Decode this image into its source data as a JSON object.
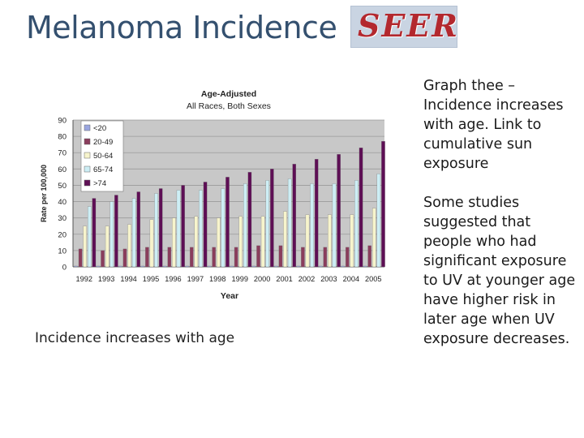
{
  "slide": {
    "title": "Melanoma Incidence",
    "logo_text": "SEER",
    "caption": "Incidence increases with age",
    "notes": [
      "Graph thee – Incidence increases with age. Link to cumulative sun exposure",
      "Some studies suggested that people who had significant exposure to UV at younger age have higher risk in later age when UV exposure decreases."
    ]
  },
  "chart_data": {
    "type": "bar",
    "title": "Age-Adjusted",
    "subtitle": "All Races, Both Sexes",
    "xlabel": "Year",
    "ylabel": "Rate per 100,000",
    "ylim": [
      0,
      90
    ],
    "yticks": [
      0,
      10,
      20,
      30,
      40,
      50,
      60,
      70,
      80,
      90
    ],
    "grid": true,
    "legend_position": "top-left",
    "categories": [
      "1992",
      "1993",
      "1994",
      "1995",
      "1996",
      "1997",
      "1998",
      "1999",
      "2000",
      "2001",
      "2002",
      "2003",
      "2004",
      "2005"
    ],
    "series": [
      {
        "name": "<20",
        "color": "#9aa6e0",
        "values": [
          0.5,
          0.5,
          0.5,
          0.5,
          0.5,
          0.5,
          0.5,
          0.5,
          0.5,
          0.5,
          0.5,
          0.5,
          0.5,
          0.5
        ]
      },
      {
        "name": "20-49",
        "color": "#8a3d5c",
        "values": [
          11,
          10,
          11,
          12,
          12,
          12,
          12,
          12,
          13,
          13,
          12,
          12,
          12,
          13
        ]
      },
      {
        "name": "50-64",
        "color": "#f7f4cc",
        "values": [
          25,
          25,
          26,
          29,
          30,
          31,
          30,
          31,
          31,
          34,
          32,
          32,
          32,
          36
        ]
      },
      {
        "name": "65-74",
        "color": "#cdeef5",
        "values": [
          37,
          40,
          42,
          45,
          47,
          47,
          48,
          51,
          53,
          54,
          51,
          51,
          53,
          57
        ]
      },
      {
        "name": ">74",
        "color": "#5e0f55",
        "values": [
          42,
          44,
          46,
          48,
          50,
          52,
          55,
          58,
          60,
          63,
          66,
          69,
          73,
          77
        ]
      }
    ]
  }
}
